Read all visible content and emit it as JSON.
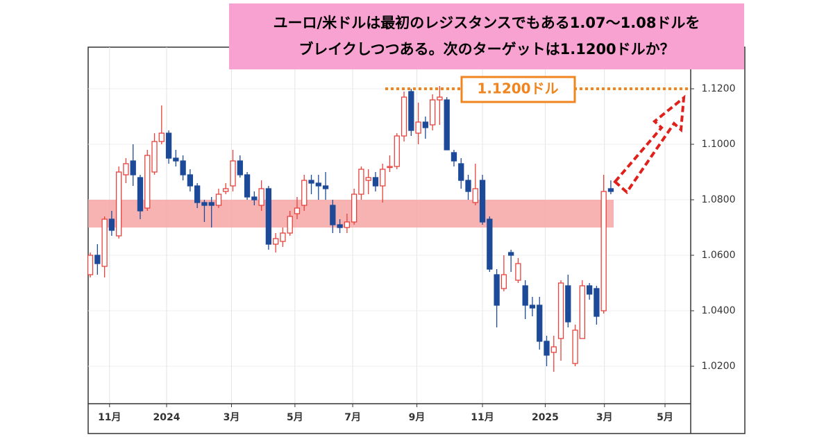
{
  "chart_data": {
    "type": "candlestick",
    "title": [
      "ユーロ/米ドルは最初のレジスタンスでもある1.07～1.08ドルを",
      "ブレイクしつつある。次のターゲットは1.1200ドルか？"
    ],
    "x": [
      0,
      1,
      2,
      3,
      4,
      5,
      6,
      7,
      8,
      9,
      10,
      11,
      12,
      13,
      14,
      15,
      16,
      17,
      18,
      19,
      20,
      21,
      22,
      23,
      24,
      25,
      26,
      27,
      28,
      29,
      30,
      31,
      32,
      33,
      34,
      35,
      36,
      37,
      38,
      39,
      40,
      41,
      42,
      43,
      44,
      45,
      46,
      47,
      48,
      49,
      50,
      51,
      52,
      53,
      54,
      55,
      56,
      57,
      58,
      59,
      60,
      61,
      62,
      63,
      64,
      65,
      66,
      67,
      68,
      69,
      70,
      71,
      72,
      73
    ],
    "open": [
      1.053,
      1.06,
      1.056,
      1.073,
      1.067,
      1.089,
      1.094,
      1.088,
      1.077,
      1.09,
      1.101,
      1.104,
      1.095,
      1.094,
      1.089,
      1.085,
      1.079,
      1.079,
      1.078,
      1.083,
      1.085,
      1.094,
      1.089,
      1.081,
      1.078,
      1.084,
      1.064,
      1.065,
      1.068,
      1.075,
      1.078,
      1.087,
      1.086,
      1.085,
      1.078,
      1.071,
      1.07,
      1.072,
      1.082,
      1.087,
      1.088,
      1.085,
      1.092,
      1.092,
      1.103,
      1.119,
      1.104,
      1.108,
      1.107,
      1.116,
      1.116,
      1.097,
      1.093,
      1.087,
      1.079,
      1.087,
      1.073,
      1.053,
      1.048,
      1.061,
      1.051,
      1.049,
      1.042,
      1.042,
      1.029,
      1.025,
      1.03,
      1.049,
      1.021,
      1.03,
      1.049,
      1.048,
      1.04,
      1.084
    ],
    "high": [
      1.061,
      1.064,
      1.074,
      1.076,
      1.092,
      1.095,
      1.1,
      1.089,
      1.098,
      1.104,
      1.114,
      1.105,
      1.098,
      1.096,
      1.091,
      1.086,
      1.08,
      1.081,
      1.084,
      1.086,
      1.098,
      1.096,
      1.09,
      1.083,
      1.087,
      1.085,
      1.068,
      1.07,
      1.076,
      1.081,
      1.089,
      1.089,
      1.089,
      1.09,
      1.08,
      1.073,
      1.075,
      1.084,
      1.092,
      1.091,
      1.09,
      1.093,
      1.096,
      1.104,
      1.119,
      1.12,
      1.115,
      1.11,
      1.118,
      1.121,
      1.117,
      1.098,
      1.095,
      1.089,
      1.093,
      1.089,
      1.074,
      1.055,
      1.06,
      1.062,
      1.059,
      1.051,
      1.045,
      1.045,
      1.031,
      1.031,
      1.051,
      1.053,
      1.035,
      1.051,
      1.05,
      1.049,
      1.089,
      1.087
    ],
    "low": [
      1.052,
      1.053,
      1.052,
      1.067,
      1.066,
      1.086,
      1.085,
      1.073,
      1.076,
      1.089,
      1.1,
      1.093,
      1.092,
      1.087,
      1.083,
      1.077,
      1.072,
      1.07,
      1.077,
      1.082,
      1.083,
      1.088,
      1.08,
      1.078,
      1.076,
      1.062,
      1.061,
      1.063,
      1.067,
      1.073,
      1.076,
      1.082,
      1.08,
      1.08,
      1.068,
      1.068,
      1.068,
      1.071,
      1.08,
      1.082,
      1.083,
      1.079,
      1.09,
      1.091,
      1.101,
      1.103,
      1.1,
      1.102,
      1.105,
      1.107,
      1.098,
      1.092,
      1.084,
      1.08,
      1.078,
      1.071,
      1.054,
      1.034,
      1.047,
      1.054,
      1.05,
      1.037,
      1.038,
      1.026,
      1.02,
      1.018,
      1.022,
      1.034,
      1.02,
      1.03,
      1.044,
      1.035,
      1.039,
      1.082
    ],
    "close": [
      1.06,
      1.057,
      1.073,
      1.069,
      1.09,
      1.093,
      1.089,
      1.076,
      1.096,
      1.101,
      1.104,
      1.095,
      1.094,
      1.089,
      1.085,
      1.079,
      1.078,
      1.078,
      1.082,
      1.084,
      1.094,
      1.089,
      1.081,
      1.08,
      1.084,
      1.064,
      1.066,
      1.068,
      1.074,
      1.077,
      1.087,
      1.086,
      1.085,
      1.084,
      1.071,
      1.07,
      1.072,
      1.082,
      1.091,
      1.088,
      1.085,
      1.091,
      1.092,
      1.103,
      1.117,
      1.105,
      1.108,
      1.106,
      1.116,
      1.117,
      1.098,
      1.094,
      1.087,
      1.083,
      1.084,
      1.072,
      1.055,
      1.042,
      1.053,
      1.06,
      1.057,
      1.042,
      1.041,
      1.029,
      1.024,
      1.027,
      1.05,
      1.036,
      1.033,
      1.049,
      1.046,
      1.038,
      1.083,
      1.083
    ],
    "up_color": "#e8413b",
    "down_color": "#1d4a98",
    "xlim": [
      -0.3,
      84.2
    ],
    "xticks": [
      {
        "value": 2.7,
        "label": "11月"
      },
      {
        "value": 10.7,
        "label": "2024"
      },
      {
        "value": 19.8,
        "label": "3月"
      },
      {
        "value": 28.7,
        "label": "5月"
      },
      {
        "value": 36.8,
        "label": "7月"
      },
      {
        "value": 45.8,
        "label": "9月"
      },
      {
        "value": 55.0,
        "label": "11月"
      },
      {
        "value": 63.8,
        "label": "2025"
      },
      {
        "value": 72.1,
        "label": "3月"
      },
      {
        "value": 80.6,
        "label": "5月"
      }
    ],
    "ylim": [
      1.0065,
      1.135
    ],
    "yticks": [
      {
        "value": 1.02,
        "label": "1.0200"
      },
      {
        "value": 1.04,
        "label": "1.0400"
      },
      {
        "value": 1.06,
        "label": "1.0600"
      },
      {
        "value": 1.08,
        "label": "1.0800"
      },
      {
        "value": 1.1,
        "label": "1.1000"
      },
      {
        "value": 1.12,
        "label": "1.1200"
      }
    ],
    "grid": true,
    "band": {
      "range": [
        1.07,
        1.08
      ],
      "color": "#f6a5a5"
    },
    "target": {
      "value": 1.12,
      "label": "1.1200ドル",
      "color": "#f0841f"
    }
  }
}
